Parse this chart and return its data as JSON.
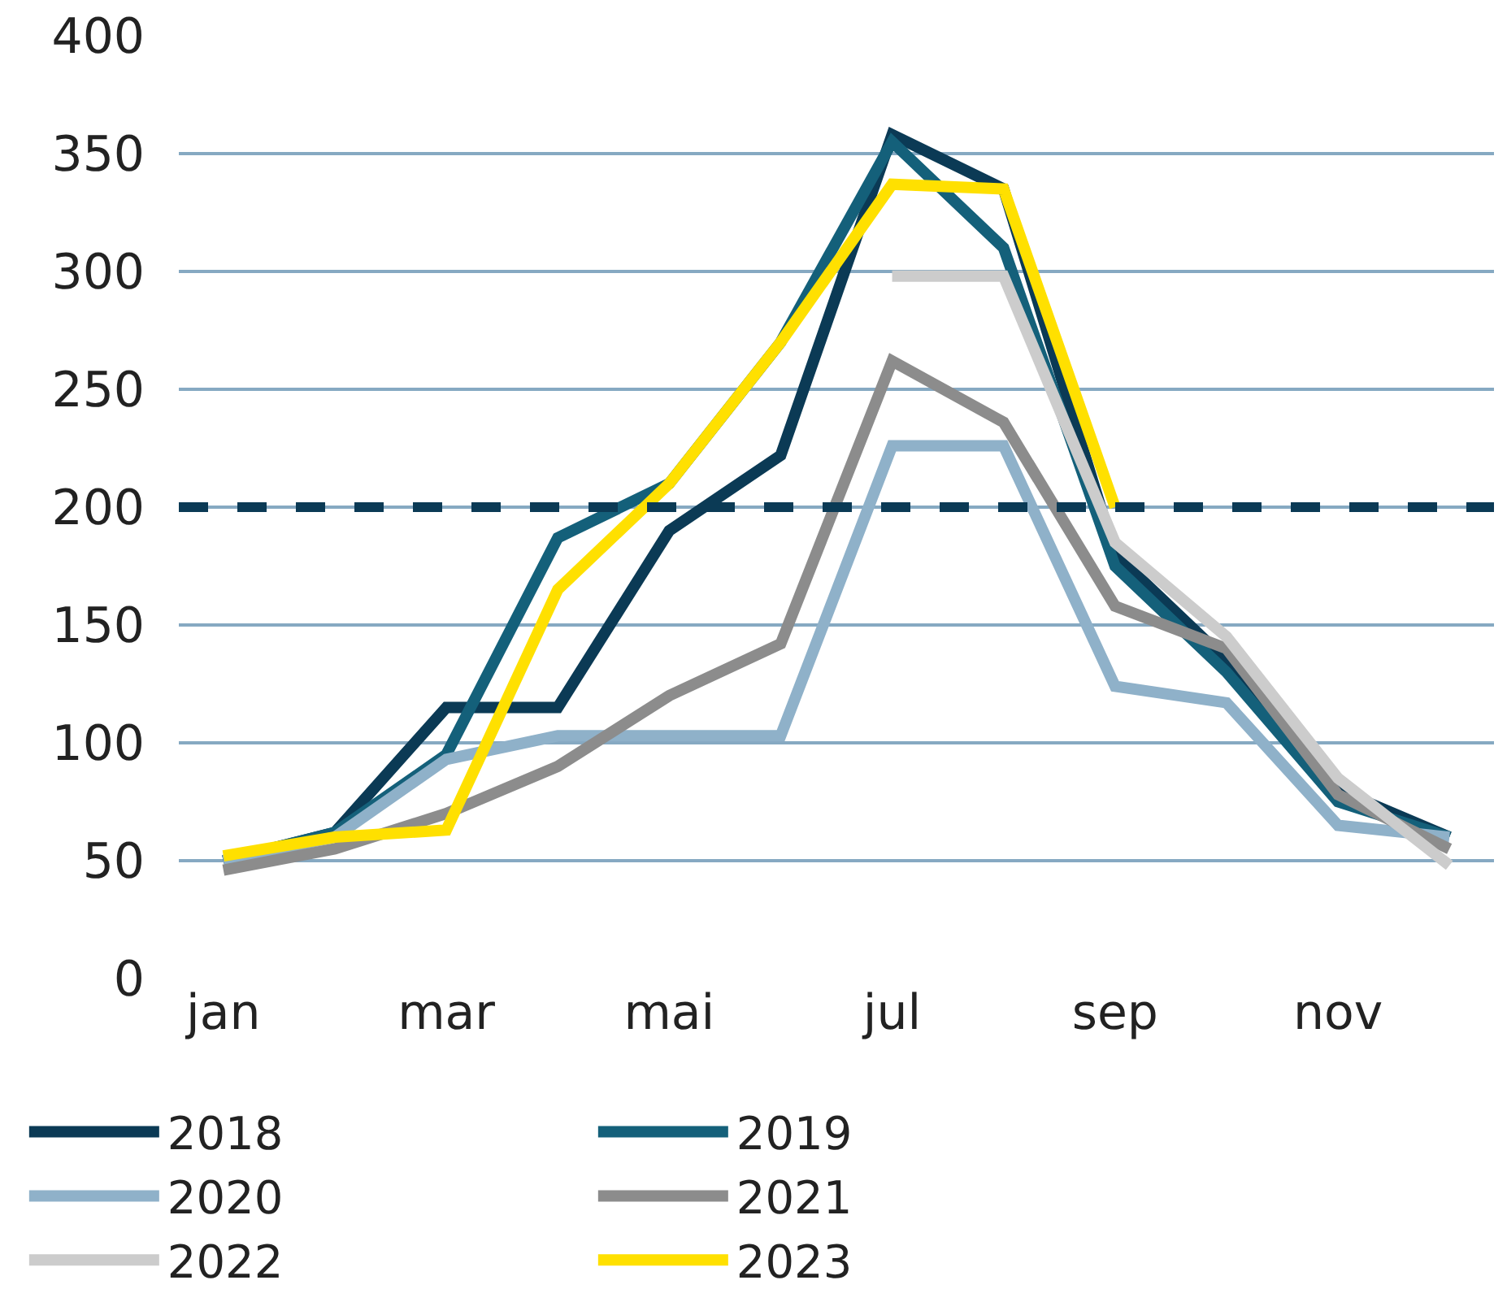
{
  "chart_data": {
    "type": "line",
    "categories": [
      "jan",
      null,
      "mar",
      null,
      "mai",
      null,
      "jul",
      null,
      "sep",
      null,
      "nov",
      null
    ],
    "series": [
      {
        "name": "2018",
        "color": "#0b3a55",
        "values": [
          50,
          62,
          115,
          115,
          190,
          222,
          358,
          335,
          180,
          135,
          80,
          60
        ]
      },
      {
        "name": "2019",
        "color": "#14607a",
        "values": [
          50,
          62,
          95,
          187,
          210,
          270,
          355,
          310,
          175,
          130,
          75,
          60
        ]
      },
      {
        "name": "2020",
        "color": "#8fb1c9",
        "values": [
          50,
          60,
          93,
          103,
          103,
          103,
          226,
          226,
          124,
          117,
          65,
          60
        ]
      },
      {
        "name": "2021",
        "color": "#8c8c8c",
        "values": [
          46,
          55,
          70,
          90,
          120,
          142,
          262,
          236,
          158,
          140,
          78,
          55
        ]
      },
      {
        "name": "2022",
        "color": "#cccccc",
        "values": [
          null,
          null,
          null,
          null,
          null,
          null,
          298,
          298,
          185,
          145,
          85,
          48
        ]
      },
      {
        "name": "2023",
        "color": "#ffe000",
        "values": [
          52,
          60,
          63,
          165,
          210,
          270,
          337,
          335,
          200,
          null,
          null,
          null
        ]
      }
    ],
    "ylim": [
      0,
      400
    ],
    "yticks": [
      0,
      50,
      100,
      150,
      200,
      250,
      300,
      350,
      400
    ],
    "ref_lines": [
      {
        "axis": "y",
        "value": 200,
        "color": "#0b3a55",
        "line_style": "dashed"
      }
    ],
    "grid": "y",
    "legend": "bottom",
    "line_style": "solid",
    "marker": "none"
  }
}
